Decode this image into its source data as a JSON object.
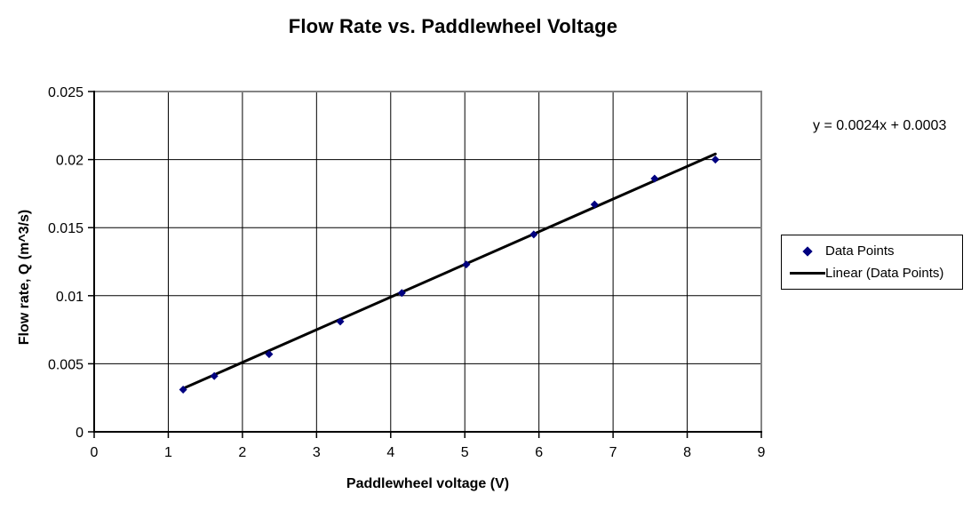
{
  "chart_title": "Flow Rate vs. Paddlewheel Voltage",
  "equation_label": "y = 0.0024x + 0.0003",
  "legend": {
    "items": [
      {
        "label": "Data Points",
        "marker": "diamond"
      },
      {
        "label": "Linear (Data Points)",
        "marker": "line"
      }
    ]
  },
  "colors": {
    "marker": "#000080",
    "trendline": "#000000",
    "axis": "#000000",
    "gridline": "#000000",
    "plot_border": "#848484",
    "background": "#ffffff",
    "text": "#000000"
  },
  "chart_data": {
    "type": "scatter",
    "title": "Flow Rate vs. Paddlewheel Voltage",
    "xlabel": "Paddlewheel voltage (V)",
    "ylabel": "Flow rate, Q (m^3/s)",
    "xlim": [
      0,
      9
    ],
    "ylim": [
      0,
      0.025
    ],
    "x_ticks": [
      0,
      1,
      2,
      3,
      4,
      5,
      6,
      7,
      8,
      9
    ],
    "x_tick_labels": [
      "0",
      "1",
      "2",
      "3",
      "4",
      "5",
      "6",
      "7",
      "8",
      "9"
    ],
    "y_ticks": [
      0,
      0.005,
      0.01,
      0.015,
      0.02,
      0.025
    ],
    "y_tick_labels": [
      "0",
      "0.005",
      "0.01",
      "0.015",
      "0.02",
      "0.025"
    ],
    "grid": true,
    "legend_position": "right-outside",
    "annotations": [
      {
        "text": "y = 0.0024x + 0.0003",
        "position": "top-right"
      }
    ],
    "series": [
      {
        "name": "Data Points",
        "type": "scatter",
        "marker": "diamond",
        "color": "#000080",
        "x": [
          1.2,
          1.62,
          2.36,
          3.32,
          4.15,
          5.02,
          5.93,
          6.75,
          7.56,
          8.38
        ],
        "y": [
          0.0031,
          0.0041,
          0.0057,
          0.0081,
          0.0102,
          0.0123,
          0.0145,
          0.0167,
          0.0186,
          0.02
        ]
      },
      {
        "name": "Linear (Data Points)",
        "type": "line",
        "color": "#000000",
        "width": 3,
        "slope": 0.0024,
        "intercept": 0.0003,
        "x_range": [
          1.2,
          8.38
        ],
        "equation": "y = 0.0024x + 0.0003"
      }
    ]
  }
}
